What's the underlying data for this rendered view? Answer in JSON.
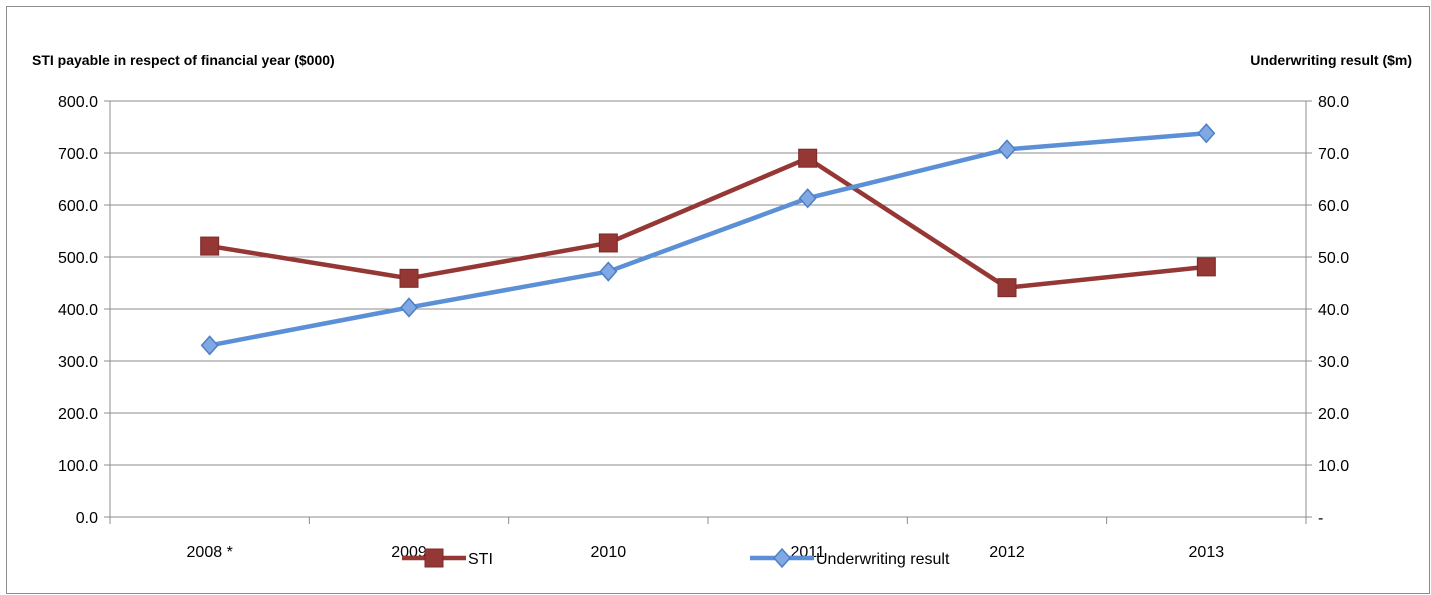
{
  "chart_data": {
    "type": "line",
    "title": "",
    "left_axis_title": "STI payable in respect of financial year ($000)",
    "right_axis_title": "Underwriting result ($m)",
    "categories": [
      "2008 *",
      "2009",
      "2010",
      "2011",
      "2012",
      "2013"
    ],
    "left_ticks": [
      "0.0",
      "100.0",
      "200.0",
      "300.0",
      "400.0",
      "500.0",
      "600.0",
      "700.0",
      "800.0"
    ],
    "right_ticks": [
      "-",
      "10.0",
      "20.0",
      "30.0",
      "40.0",
      "50.0",
      "60.0",
      "70.0",
      "80.0"
    ],
    "ylim_left": [
      0,
      800
    ],
    "ylim_right": [
      0,
      80
    ],
    "grid": true,
    "legend_position": "bottom",
    "series": [
      {
        "name": "STI",
        "axis": "left",
        "marker": "square",
        "color": "#953735",
        "values": [
          521,
          459,
          527,
          690,
          441,
          481
        ]
      },
      {
        "name": "Underwriting result",
        "axis": "right",
        "marker": "diamond",
        "color": "#5b8fd6",
        "values": [
          33.0,
          40.3,
          47.2,
          61.3,
          70.7,
          73.8
        ]
      }
    ]
  }
}
